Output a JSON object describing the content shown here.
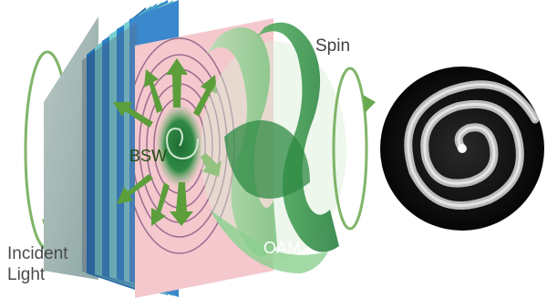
{
  "labels": {
    "spin": "Spin",
    "incident": "Incident",
    "light": "Light",
    "bsw": "BSW",
    "oam": "OAM"
  },
  "colors": {
    "arrow_green": "#5b9e3a",
    "helix_green": "#3f9a4c",
    "substrate_pink": "#f4c8cd",
    "layer_blue": "#2c7ec2",
    "layer_teal": "#6dc4c9",
    "pattern_background": "#0c0c0c",
    "pattern_ring": "#d8d8d8"
  },
  "icons": {
    "incident_spin": "circular-arrow-icon",
    "output_spin": "circular-arrow-icon",
    "surface_wave": "radial-arrows-icon"
  }
}
